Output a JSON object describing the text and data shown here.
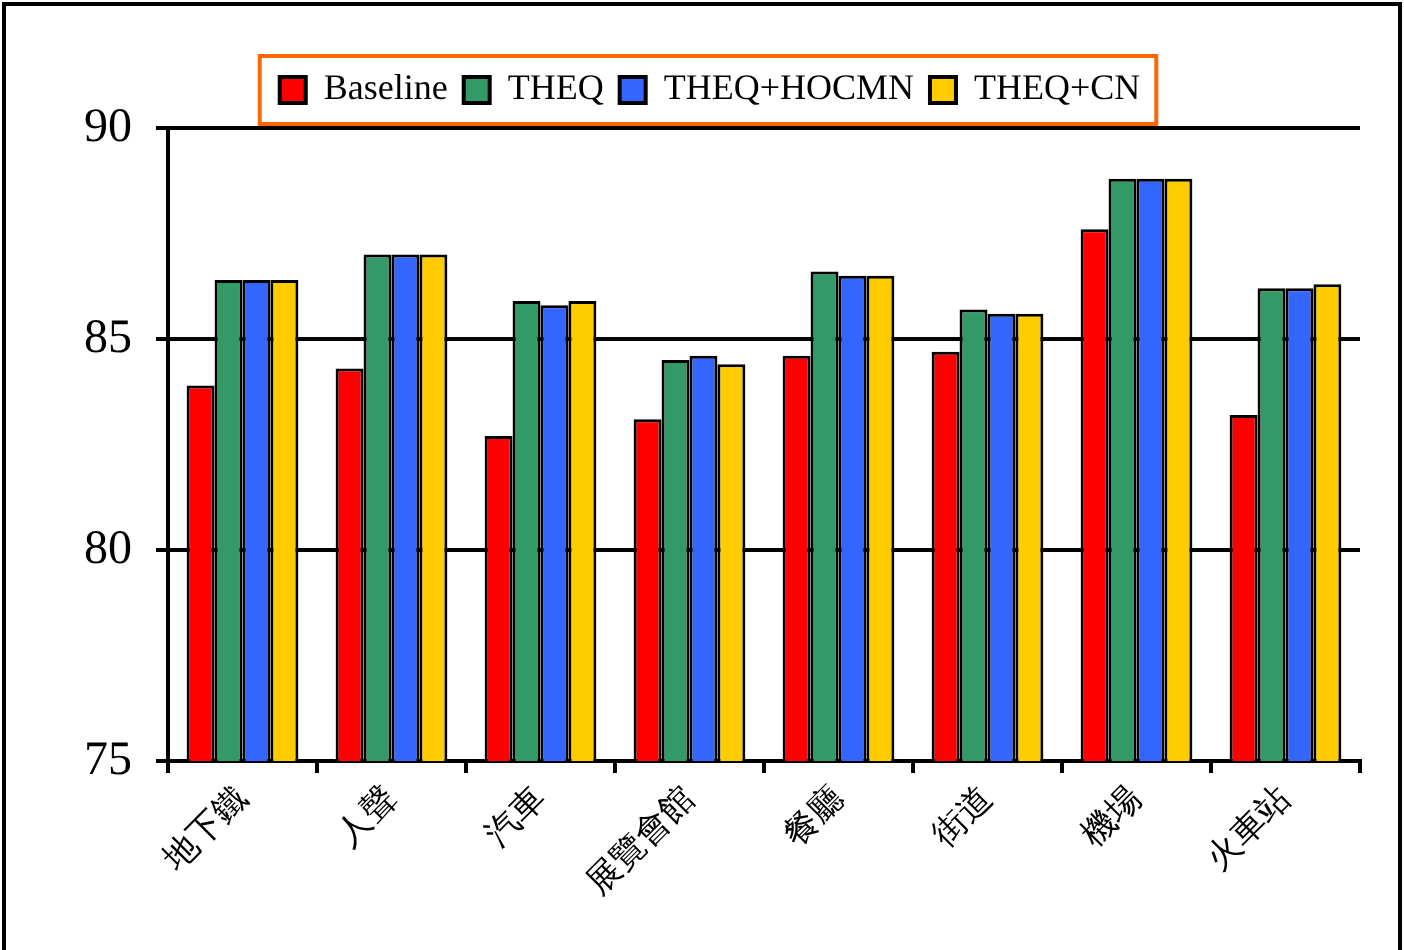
{
  "chart_data": {
    "type": "bar",
    "categories": [
      "地下鐵",
      "人聲",
      "汽車",
      "展覽會館",
      "餐廳",
      "街道",
      "機場",
      "火車站"
    ],
    "series": [
      {
        "name": "Baseline",
        "color": "#ff0000",
        "values": [
          83.9,
          84.3,
          82.7,
          83.1,
          84.6,
          84.7,
          87.6,
          83.2
        ]
      },
      {
        "name": "THEQ",
        "color": "#339966",
        "values": [
          86.4,
          87.0,
          85.9,
          84.5,
          86.6,
          85.7,
          88.8,
          86.2
        ]
      },
      {
        "name": "THEQ+HOCMN",
        "color": "#3366ff",
        "values": [
          86.4,
          87.0,
          85.8,
          84.6,
          86.5,
          85.6,
          88.8,
          86.2
        ]
      },
      {
        "name": "THEQ+CN",
        "color": "#ffcc00",
        "values": [
          86.4,
          87.0,
          85.9,
          84.4,
          86.5,
          85.6,
          88.8,
          86.3
        ]
      }
    ],
    "ylim": [
      75,
      90
    ],
    "yticks": [
      75,
      80,
      85,
      90
    ],
    "grid": "y",
    "legend": "top"
  }
}
